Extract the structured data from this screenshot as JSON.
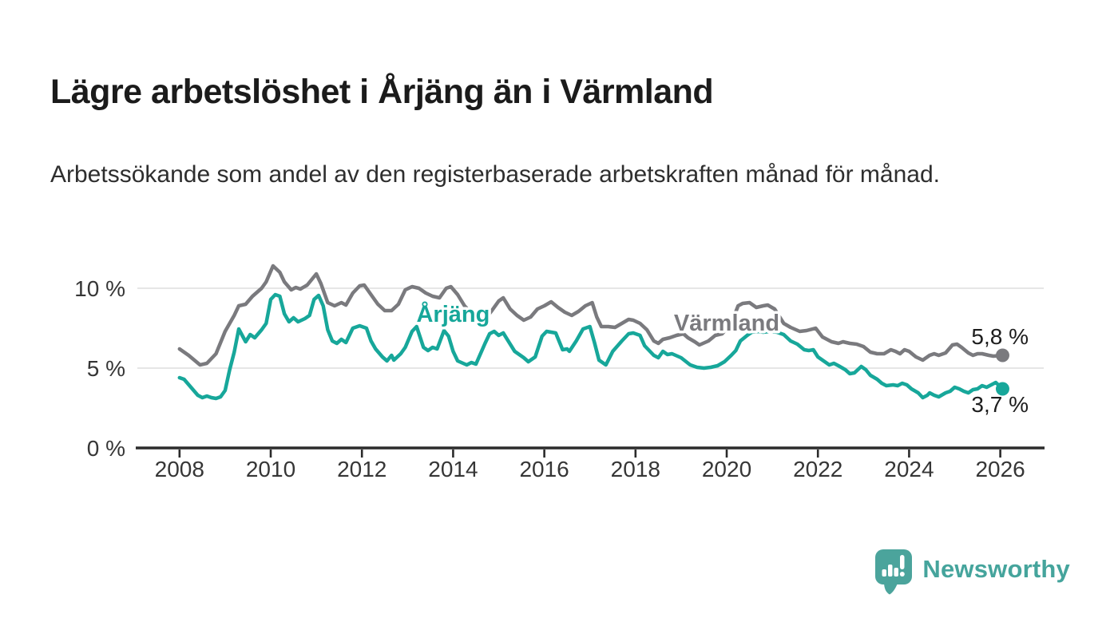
{
  "header": {
    "title": "Lägre arbetslöshet i Årjäng än i Värmland",
    "subtitle": "Arbetssökande som andel av den registerbaserade arbetskraften månad för månad."
  },
  "footer": {
    "brand": "Newsworthy",
    "logo_icon": "speech-bubble-bar-chart",
    "logo_color": "#4ba49c"
  },
  "chart_data": {
    "type": "line",
    "x_unit": "decimal_year",
    "xlim": [
      2007.04,
      2026.97
    ],
    "ylim": [
      0,
      12.2
    ],
    "grid": "horizontal",
    "x_ticks": [
      2008,
      2010,
      2012,
      2014,
      2016,
      2018,
      2020,
      2022,
      2024,
      2026
    ],
    "x_tick_labels": [
      "2008",
      "2010",
      "2012",
      "2014",
      "2016",
      "2018",
      "2020",
      "2022",
      "2024",
      "2026"
    ],
    "y_ticks": [
      {
        "value": 0,
        "label": "0 %"
      },
      {
        "value": 5,
        "label": "5 %"
      },
      {
        "value": 10,
        "label": "10 %"
      }
    ],
    "series": [
      {
        "name": "Värmland",
        "color": "#7a7a7e",
        "end_value": 5.8,
        "points": [
          [
            2008.0,
            6.2
          ],
          [
            2008.2,
            5.8
          ],
          [
            2008.45,
            5.2
          ],
          [
            2008.6,
            5.3
          ],
          [
            2008.8,
            5.9
          ],
          [
            2009.0,
            7.3
          ],
          [
            2009.2,
            8.3
          ],
          [
            2009.3,
            8.9
          ],
          [
            2009.45,
            9.0
          ],
          [
            2009.6,
            9.5
          ],
          [
            2009.8,
            10.0
          ],
          [
            2009.9,
            10.4
          ],
          [
            2010.05,
            11.4
          ],
          [
            2010.2,
            11.0
          ],
          [
            2010.3,
            10.4
          ],
          [
            2010.45,
            9.9
          ],
          [
            2010.55,
            10.05
          ],
          [
            2010.65,
            9.95
          ],
          [
            2010.8,
            10.2
          ],
          [
            2011.0,
            10.9
          ],
          [
            2011.1,
            10.3
          ],
          [
            2011.25,
            9.1
          ],
          [
            2011.4,
            8.9
          ],
          [
            2011.55,
            9.1
          ],
          [
            2011.65,
            8.95
          ],
          [
            2011.8,
            9.7
          ],
          [
            2011.95,
            10.15
          ],
          [
            2012.05,
            10.2
          ],
          [
            2012.2,
            9.6
          ],
          [
            2012.35,
            9.0
          ],
          [
            2012.5,
            8.6
          ],
          [
            2012.65,
            8.6
          ],
          [
            2012.8,
            9.0
          ],
          [
            2012.95,
            9.9
          ],
          [
            2013.1,
            10.1
          ],
          [
            2013.25,
            10.0
          ],
          [
            2013.4,
            9.7
          ],
          [
            2013.55,
            9.5
          ],
          [
            2013.7,
            9.4
          ],
          [
            2013.85,
            10.0
          ],
          [
            2013.95,
            10.1
          ],
          [
            2014.1,
            9.6
          ],
          [
            2014.25,
            8.9
          ],
          [
            2014.4,
            8.45
          ],
          [
            2014.55,
            8.15
          ],
          [
            2014.7,
            8.05
          ],
          [
            2014.85,
            8.6
          ],
          [
            2015.0,
            9.2
          ],
          [
            2015.1,
            9.4
          ],
          [
            2015.25,
            8.7
          ],
          [
            2015.4,
            8.3
          ],
          [
            2015.55,
            8.0
          ],
          [
            2015.7,
            8.2
          ],
          [
            2015.85,
            8.7
          ],
          [
            2016.0,
            8.9
          ],
          [
            2016.15,
            9.15
          ],
          [
            2016.3,
            8.8
          ],
          [
            2016.45,
            8.5
          ],
          [
            2016.6,
            8.3
          ],
          [
            2016.75,
            8.55
          ],
          [
            2016.9,
            8.9
          ],
          [
            2017.05,
            9.1
          ],
          [
            2017.15,
            8.2
          ],
          [
            2017.25,
            7.6
          ],
          [
            2017.4,
            7.6
          ],
          [
            2017.55,
            7.55
          ],
          [
            2017.7,
            7.8
          ],
          [
            2017.85,
            8.05
          ],
          [
            2017.95,
            8.0
          ],
          [
            2018.1,
            7.8
          ],
          [
            2018.25,
            7.4
          ],
          [
            2018.4,
            6.7
          ],
          [
            2018.5,
            6.55
          ],
          [
            2018.6,
            6.8
          ],
          [
            2018.75,
            6.9
          ],
          [
            2018.9,
            7.05
          ],
          [
            2019.05,
            7.15
          ],
          [
            2019.15,
            6.9
          ],
          [
            2019.3,
            6.65
          ],
          [
            2019.4,
            6.45
          ],
          [
            2019.6,
            6.7
          ],
          [
            2019.75,
            7.05
          ],
          [
            2019.9,
            7.15
          ],
          [
            2020.1,
            7.8
          ],
          [
            2020.25,
            8.9
          ],
          [
            2020.35,
            9.05
          ],
          [
            2020.5,
            9.1
          ],
          [
            2020.65,
            8.8
          ],
          [
            2020.8,
            8.9
          ],
          [
            2020.9,
            8.95
          ],
          [
            2021.05,
            8.7
          ],
          [
            2021.25,
            7.8
          ],
          [
            2021.4,
            7.55
          ],
          [
            2021.6,
            7.3
          ],
          [
            2021.75,
            7.35
          ],
          [
            2021.95,
            7.5
          ],
          [
            2022.1,
            6.95
          ],
          [
            2022.3,
            6.65
          ],
          [
            2022.45,
            6.55
          ],
          [
            2022.55,
            6.65
          ],
          [
            2022.7,
            6.55
          ],
          [
            2022.85,
            6.5
          ],
          [
            2023.0,
            6.35
          ],
          [
            2023.15,
            6.0
          ],
          [
            2023.3,
            5.9
          ],
          [
            2023.45,
            5.9
          ],
          [
            2023.6,
            6.15
          ],
          [
            2023.7,
            6.05
          ],
          [
            2023.8,
            5.9
          ],
          [
            2023.9,
            6.15
          ],
          [
            2024.0,
            6.05
          ],
          [
            2024.15,
            5.7
          ],
          [
            2024.3,
            5.5
          ],
          [
            2024.45,
            5.8
          ],
          [
            2024.55,
            5.9
          ],
          [
            2024.65,
            5.8
          ],
          [
            2024.8,
            5.95
          ],
          [
            2024.95,
            6.45
          ],
          [
            2025.05,
            6.5
          ],
          [
            2025.15,
            6.3
          ],
          [
            2025.3,
            5.95
          ],
          [
            2025.4,
            5.8
          ],
          [
            2025.5,
            5.9
          ],
          [
            2025.6,
            5.9
          ],
          [
            2025.75,
            5.8
          ],
          [
            2025.85,
            5.75
          ],
          [
            2026.05,
            5.8
          ]
        ]
      },
      {
        "name": "Årjäng",
        "color": "#17a79a",
        "end_value": 3.7,
        "points": [
          [
            2008.0,
            4.4
          ],
          [
            2008.1,
            4.3
          ],
          [
            2008.25,
            3.8
          ],
          [
            2008.4,
            3.3
          ],
          [
            2008.5,
            3.15
          ],
          [
            2008.6,
            3.25
          ],
          [
            2008.7,
            3.15
          ],
          [
            2008.8,
            3.1
          ],
          [
            2008.9,
            3.2
          ],
          [
            2009.0,
            3.6
          ],
          [
            2009.1,
            4.9
          ],
          [
            2009.2,
            6.0
          ],
          [
            2009.3,
            7.45
          ],
          [
            2009.45,
            6.65
          ],
          [
            2009.55,
            7.1
          ],
          [
            2009.65,
            6.9
          ],
          [
            2009.8,
            7.4
          ],
          [
            2009.9,
            7.8
          ],
          [
            2010.0,
            9.3
          ],
          [
            2010.1,
            9.6
          ],
          [
            2010.2,
            9.5
          ],
          [
            2010.3,
            8.4
          ],
          [
            2010.4,
            7.9
          ],
          [
            2010.5,
            8.15
          ],
          [
            2010.6,
            7.9
          ],
          [
            2010.75,
            8.1
          ],
          [
            2010.85,
            8.3
          ],
          [
            2010.95,
            9.3
          ],
          [
            2011.05,
            9.55
          ],
          [
            2011.15,
            8.9
          ],
          [
            2011.25,
            7.4
          ],
          [
            2011.35,
            6.7
          ],
          [
            2011.45,
            6.55
          ],
          [
            2011.55,
            6.8
          ],
          [
            2011.65,
            6.6
          ],
          [
            2011.8,
            7.5
          ],
          [
            2011.95,
            7.65
          ],
          [
            2012.1,
            7.5
          ],
          [
            2012.2,
            6.7
          ],
          [
            2012.3,
            6.2
          ],
          [
            2012.45,
            5.7
          ],
          [
            2012.55,
            5.45
          ],
          [
            2012.65,
            5.8
          ],
          [
            2012.7,
            5.5
          ],
          [
            2012.85,
            5.9
          ],
          [
            2012.95,
            6.3
          ],
          [
            2013.1,
            7.3
          ],
          [
            2013.2,
            7.6
          ],
          [
            2013.35,
            6.3
          ],
          [
            2013.45,
            6.1
          ],
          [
            2013.55,
            6.3
          ],
          [
            2013.65,
            6.2
          ],
          [
            2013.8,
            7.35
          ],
          [
            2013.9,
            7.0
          ],
          [
            2014.0,
            6.05
          ],
          [
            2014.1,
            5.45
          ],
          [
            2014.3,
            5.2
          ],
          [
            2014.4,
            5.35
          ],
          [
            2014.5,
            5.25
          ],
          [
            2014.7,
            6.55
          ],
          [
            2014.8,
            7.15
          ],
          [
            2014.9,
            7.3
          ],
          [
            2015.0,
            7.05
          ],
          [
            2015.1,
            7.2
          ],
          [
            2015.35,
            6.05
          ],
          [
            2015.55,
            5.65
          ],
          [
            2015.65,
            5.4
          ],
          [
            2015.8,
            5.7
          ],
          [
            2015.95,
            7.0
          ],
          [
            2016.05,
            7.3
          ],
          [
            2016.25,
            7.2
          ],
          [
            2016.4,
            6.15
          ],
          [
            2016.5,
            6.2
          ],
          [
            2016.55,
            6.05
          ],
          [
            2016.7,
            6.7
          ],
          [
            2016.85,
            7.45
          ],
          [
            2017.0,
            7.6
          ],
          [
            2017.1,
            6.6
          ],
          [
            2017.2,
            5.5
          ],
          [
            2017.35,
            5.2
          ],
          [
            2017.5,
            6.05
          ],
          [
            2017.7,
            6.7
          ],
          [
            2017.85,
            7.15
          ],
          [
            2017.95,
            7.2
          ],
          [
            2018.1,
            7.05
          ],
          [
            2018.2,
            6.4
          ],
          [
            2018.4,
            5.8
          ],
          [
            2018.5,
            5.65
          ],
          [
            2018.6,
            6.05
          ],
          [
            2018.7,
            5.85
          ],
          [
            2018.8,
            5.9
          ],
          [
            2019.0,
            5.65
          ],
          [
            2019.2,
            5.2
          ],
          [
            2019.35,
            5.05
          ],
          [
            2019.5,
            5.0
          ],
          [
            2019.65,
            5.05
          ],
          [
            2019.8,
            5.15
          ],
          [
            2019.95,
            5.4
          ],
          [
            2020.1,
            5.8
          ],
          [
            2020.2,
            6.1
          ],
          [
            2020.3,
            6.7
          ],
          [
            2020.45,
            7.05
          ],
          [
            2020.55,
            7.25
          ],
          [
            2020.7,
            7.3
          ],
          [
            2020.8,
            7.25
          ],
          [
            2020.95,
            7.3
          ],
          [
            2021.1,
            7.25
          ],
          [
            2021.25,
            7.1
          ],
          [
            2021.4,
            6.7
          ],
          [
            2021.55,
            6.5
          ],
          [
            2021.7,
            6.15
          ],
          [
            2021.8,
            6.1
          ],
          [
            2021.9,
            6.15
          ],
          [
            2022.0,
            5.7
          ],
          [
            2022.15,
            5.4
          ],
          [
            2022.25,
            5.2
          ],
          [
            2022.35,
            5.3
          ],
          [
            2022.45,
            5.15
          ],
          [
            2022.6,
            4.9
          ],
          [
            2022.7,
            4.65
          ],
          [
            2022.8,
            4.7
          ],
          [
            2022.95,
            5.1
          ],
          [
            2023.05,
            4.9
          ],
          [
            2023.15,
            4.55
          ],
          [
            2023.3,
            4.3
          ],
          [
            2023.4,
            4.05
          ],
          [
            2023.5,
            3.9
          ],
          [
            2023.65,
            3.95
          ],
          [
            2023.75,
            3.9
          ],
          [
            2023.85,
            4.05
          ],
          [
            2023.95,
            3.95
          ],
          [
            2024.05,
            3.7
          ],
          [
            2024.2,
            3.45
          ],
          [
            2024.3,
            3.15
          ],
          [
            2024.4,
            3.3
          ],
          [
            2024.45,
            3.45
          ],
          [
            2024.55,
            3.3
          ],
          [
            2024.65,
            3.2
          ],
          [
            2024.8,
            3.45
          ],
          [
            2024.9,
            3.55
          ],
          [
            2025.0,
            3.8
          ],
          [
            2025.1,
            3.7
          ],
          [
            2025.2,
            3.55
          ],
          [
            2025.3,
            3.45
          ],
          [
            2025.4,
            3.65
          ],
          [
            2025.5,
            3.7
          ],
          [
            2025.6,
            3.9
          ],
          [
            2025.7,
            3.8
          ],
          [
            2025.8,
            3.95
          ],
          [
            2025.9,
            4.1
          ],
          [
            2026.05,
            3.7
          ]
        ]
      }
    ],
    "series_labels": [
      {
        "text": "Årjäng",
        "x": 2014.0,
        "y": 7.9,
        "color": "#17a79a"
      },
      {
        "text": "Värmland",
        "x": 2020.0,
        "y": 7.35,
        "color": "#7a7a7e"
      }
    ],
    "annotations": [
      {
        "text": "5,8 %",
        "x": 2026.62,
        "y": 6.5,
        "anchor": "end"
      },
      {
        "text": "3,7 %",
        "x": 2026.62,
        "y": 2.25,
        "anchor": "end"
      }
    ]
  }
}
